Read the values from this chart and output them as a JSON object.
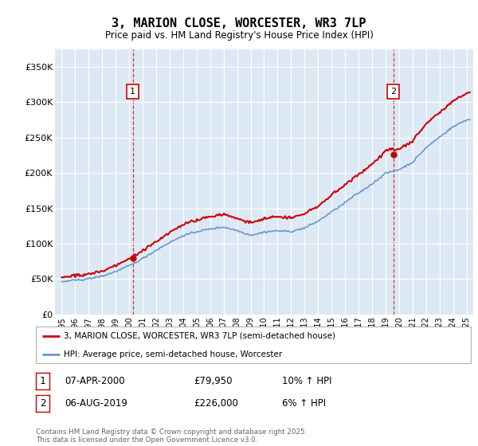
{
  "title": "3, MARION CLOSE, WORCESTER, WR3 7LP",
  "subtitle": "Price paid vs. HM Land Registry's House Price Index (HPI)",
  "background_color": "#dce9f5",
  "plot_bg_color": "#dce9f5",
  "ylim": [
    0,
    375000
  ],
  "yticks": [
    0,
    50000,
    100000,
    150000,
    200000,
    250000,
    300000,
    350000
  ],
  "ytick_labels": [
    "£0",
    "£50K",
    "£100K",
    "£150K",
    "£200K",
    "£250K",
    "£300K",
    "£350K"
  ],
  "xlim_start": 1994.5,
  "xlim_end": 2025.5,
  "xtick_years": [
    1995,
    1996,
    1997,
    1998,
    1999,
    2000,
    2001,
    2002,
    2003,
    2004,
    2005,
    2006,
    2007,
    2008,
    2009,
    2010,
    2011,
    2012,
    2013,
    2014,
    2015,
    2016,
    2017,
    2018,
    2019,
    2020,
    2021,
    2022,
    2023,
    2024,
    2025
  ],
  "sale1_x": 2000.27,
  "sale1_y": 79950,
  "sale2_x": 2019.59,
  "sale2_y": 226000,
  "legend_line1": "3, MARION CLOSE, WORCESTER, WR3 7LP (semi-detached house)",
  "legend_line2": "HPI: Average price, semi-detached house, Worcester",
  "legend_color1": "#cc0000",
  "legend_color2": "#6699cc",
  "annotation1_label": "1",
  "annotation1_date": "07-APR-2000",
  "annotation1_price": "£79,950",
  "annotation1_hpi": "10% ↑ HPI",
  "annotation2_label": "2",
  "annotation2_date": "06-AUG-2019",
  "annotation2_price": "£226,000",
  "annotation2_hpi": "6% ↑ HPI",
  "footer": "Contains HM Land Registry data © Crown copyright and database right 2025.\nThis data is licensed under the Open Government Licence v3.0.",
  "hpi_color": "#6699cc",
  "price_color": "#cc0000",
  "hpi_knots_x": [
    1995,
    1996,
    1997,
    1998,
    1999,
    2000,
    2001,
    2002,
    2003,
    2004,
    2005,
    2006,
    2007,
    2008,
    2009,
    2010,
    2011,
    2012,
    2013,
    2014,
    2015,
    2016,
    2017,
    2018,
    2019,
    2020,
    2021,
    2022,
    2023,
    2024,
    2025
  ],
  "hpi_knots_y": [
    46000,
    48000,
    51000,
    55000,
    62000,
    70000,
    80000,
    92000,
    103000,
    113000,
    118000,
    122000,
    125000,
    120000,
    113000,
    117000,
    119000,
    118000,
    122000,
    132000,
    145000,
    158000,
    172000,
    185000,
    200000,
    205000,
    215000,
    235000,
    250000,
    265000,
    275000
  ]
}
